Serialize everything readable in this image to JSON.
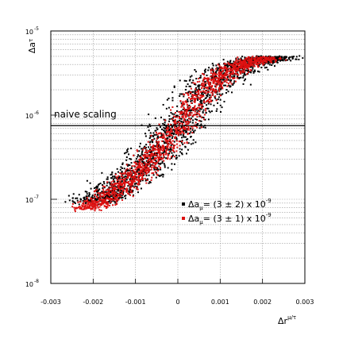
{
  "chart_data": {
    "type": "scatter",
    "xlabel": "Δr",
    "xlabel_sup": "μ/τ",
    "ylabel": "Δa",
    "ylabel_sub": "τ",
    "xlim": [
      -0.003,
      0.003
    ],
    "ylim": [
      1e-08,
      1e-05
    ],
    "yscale": "log",
    "grid": true,
    "x_ticks": [
      {
        "value": -0.003,
        "label": "-0.003"
      },
      {
        "value": -0.002,
        "label": "-0.002"
      },
      {
        "value": -0.001,
        "label": "-0.001"
      },
      {
        "value": 0,
        "label": "0"
      },
      {
        "value": 0.001,
        "label": "0.001"
      },
      {
        "value": 0.002,
        "label": "0.002"
      },
      {
        "value": 0.003,
        "label": "0.003"
      }
    ],
    "y_ticks": [
      {
        "value": 1e-08,
        "base": "10",
        "exp": "-8"
      },
      {
        "value": 1e-07,
        "base": "10",
        "exp": "-7"
      },
      {
        "value": 1e-06,
        "base": "10",
        "exp": "-6"
      },
      {
        "value": 1e-05,
        "base": "10",
        "exp": "-5"
      }
    ],
    "reference_line": {
      "y": 7.5e-07,
      "label": "naive scaling"
    },
    "series": [
      {
        "color": "#000000",
        "legend_label": "Δa",
        "legend_sub": "μ",
        "legend_text": "= (3 ± 2) x 10",
        "legend_exp": "-9",
        "band": [
          [
            -0.0021,
            9e-08
          ],
          [
            -0.0018,
            1.05e-07
          ],
          [
            -0.0015,
            1.3e-07
          ],
          [
            -0.0012,
            1.7e-07
          ],
          [
            -0.0009,
            2.3e-07
          ],
          [
            -0.0006,
            3.2e-07
          ],
          [
            -0.0003,
            4.6e-07
          ],
          [
            0.0,
            7e-07
          ],
          [
            0.0003,
            1.1e-06
          ],
          [
            0.0006,
            1.8e-06
          ],
          [
            0.0009,
            2.6e-06
          ],
          [
            0.0012,
            3.3e-06
          ],
          [
            0.0015,
            3.9e-06
          ],
          [
            0.0018,
            4.4e-06
          ],
          [
            0.0021,
            4.7e-06
          ],
          [
            0.0024,
            4.8e-06
          ]
        ],
        "width": [
          -0.001,
          0.0012
        ],
        "count": 1800,
        "seed": 7
      },
      {
        "color": "#dd1111",
        "legend_label": "Δa",
        "legend_sub": "μ",
        "legend_text": "= (3 ± 1) x 10",
        "legend_exp": "-9",
        "band": [
          [
            -0.0022,
            7.5e-08
          ],
          [
            -0.0018,
            9.5e-08
          ],
          [
            -0.0015,
            1.2e-07
          ],
          [
            -0.0012,
            1.6e-07
          ],
          [
            -0.0009,
            2.2e-07
          ],
          [
            -0.0006,
            3.1e-07
          ],
          [
            -0.0003,
            4.4e-07
          ],
          [
            0.0,
            6.8e-07
          ],
          [
            0.0003,
            1.1e-06
          ],
          [
            0.0006,
            1.8e-06
          ],
          [
            0.0009,
            2.6e-06
          ],
          [
            0.0012,
            3.3e-06
          ],
          [
            0.0015,
            3.9e-06
          ],
          [
            0.0018,
            4.4e-06
          ],
          [
            0.0021,
            4.8e-06
          ]
        ],
        "width": [
          -0.0007,
          0.0007
        ],
        "count": 1600,
        "seed": 13
      }
    ]
  }
}
